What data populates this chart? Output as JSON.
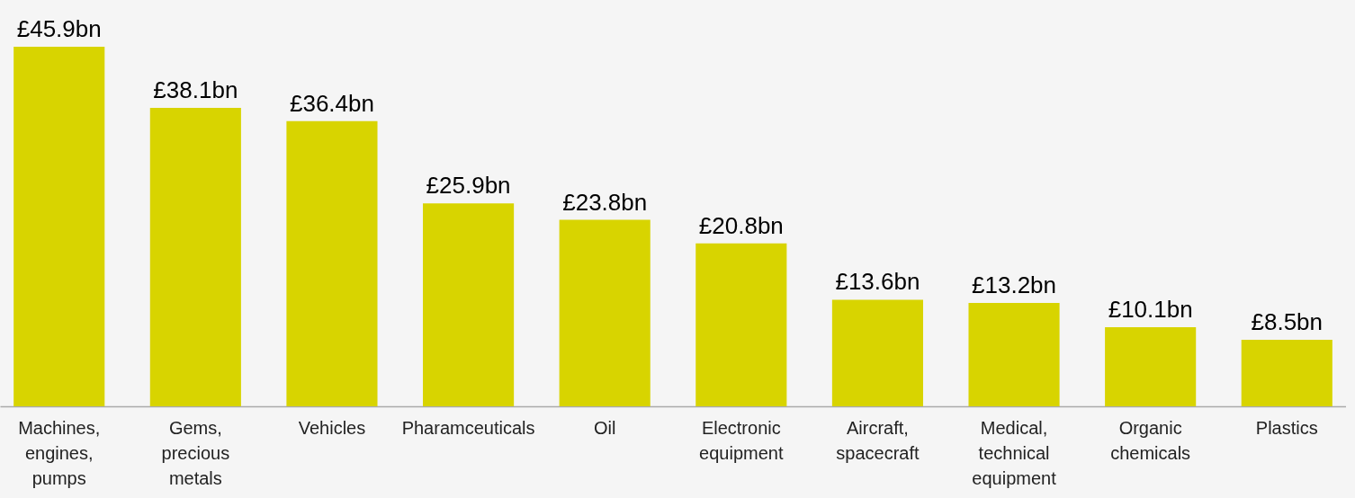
{
  "chart_data": {
    "type": "bar",
    "categories": [
      "Machines, engines, pumps",
      "Gems, precious metals",
      "Vehicles",
      "Pharamceuticals",
      "Oil",
      "Electronic equipment",
      "Aircraft, spacecraft",
      "Medical, technical equipment",
      "Organic chemicals",
      "Plastics"
    ],
    "values": [
      45.9,
      38.1,
      36.4,
      25.9,
      23.8,
      20.8,
      13.6,
      13.2,
      10.1,
      8.5
    ],
    "value_labels": [
      "£45.9bn",
      "£38.1bn",
      "£36.4bn",
      "£25.9bn",
      "£23.8bn",
      "£20.8bn",
      "£13.6bn",
      "£13.2bn",
      "£10.1bn",
      "£8.5bn"
    ],
    "color": "#d8d400"
  }
}
